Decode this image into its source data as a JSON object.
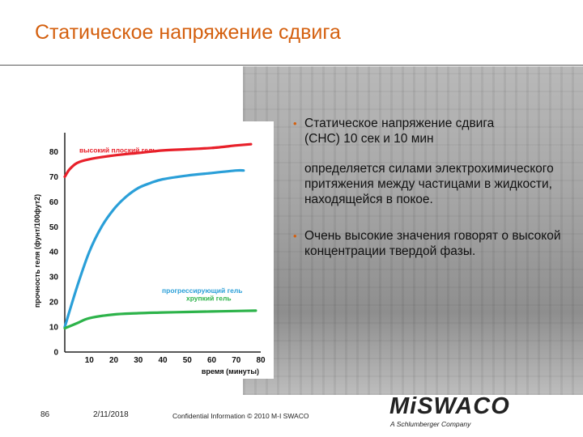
{
  "slide": {
    "title": "Статическое напряжение сдвига"
  },
  "bullets": {
    "item1_line1": "Статическое напряжение сдвига",
    "item1_line2": "(СНС)  10 сек и 10 мин",
    "item1_cont": "определяется силами электрохимического притяжения между частицами в жидкости, находящейся в покое.",
    "item2": "Очень высокие значения говорят о высокой концентрации твердой фазы."
  },
  "footer": {
    "page_number": "86",
    "date": "2/11/2018",
    "confidential": "Confidential Information  © 2010 M-I SWACO"
  },
  "logo": {
    "text": "MiSWACO",
    "tagline": "A Schlumberger Company"
  },
  "colors": {
    "title": "#d4600f",
    "high_flat_gel": "#e8202a",
    "progressive_gel": "#2a9fd8",
    "fragile_gel": "#2db34a"
  },
  "chart_data": {
    "type": "line",
    "title": "",
    "xlabel": "время (минуты)",
    "ylabel": "прочность геля (фунт/100фут2)",
    "xlim": [
      0,
      80
    ],
    "ylim": [
      0,
      85
    ],
    "x_ticks": [
      "0",
      "10",
      "20",
      "30",
      "40",
      "50",
      "60",
      "70",
      "80"
    ],
    "y_ticks": [
      "0",
      "10",
      "20",
      "30",
      "40",
      "50",
      "60",
      "70",
      "80"
    ],
    "grid": false,
    "legend": "inline labels",
    "series": [
      {
        "name": "высокий плоский гель",
        "color": "#e8202a",
        "x": [
          0,
          2,
          5,
          10,
          20,
          30,
          40,
          50,
          60,
          70,
          76
        ],
        "y": [
          70,
          73,
          75.5,
          77,
          78.5,
          79.5,
          80.5,
          81,
          81.5,
          82.5,
          83
        ]
      },
      {
        "name": "прогрессирующий гель",
        "color": "#2a9fd8",
        "x": [
          0,
          5,
          10,
          15,
          20,
          25,
          30,
          35,
          40,
          50,
          60,
          70,
          73
        ],
        "y": [
          10,
          26,
          40,
          50,
          57,
          62,
          65.5,
          67.5,
          69,
          70.5,
          71.5,
          72.5,
          72.5
        ]
      },
      {
        "name": "хрупкий гель",
        "color": "#2db34a",
        "x": [
          0,
          5,
          10,
          20,
          30,
          40,
          50,
          60,
          70,
          78
        ],
        "y": [
          9.5,
          11.5,
          13.5,
          15,
          15.5,
          15.8,
          16,
          16.2,
          16.4,
          16.5
        ]
      }
    ]
  }
}
